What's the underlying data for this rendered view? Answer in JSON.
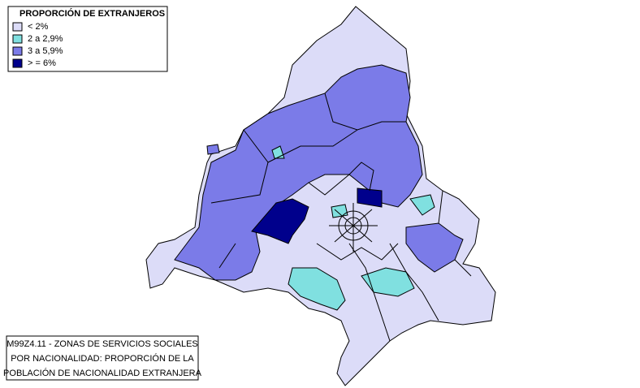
{
  "legend": {
    "title": "PROPORCIÓN DE EXTRANJEROS",
    "items": [
      {
        "label": "< 2%",
        "color": "#dcdcf8"
      },
      {
        "label": "2 a 2,9%",
        "color": "#80e0e0"
      },
      {
        "label": "3 a 5,9%",
        "color": "#7b7be8"
      },
      {
        "label": ">  = 6%",
        "color": "#00008c"
      }
    ]
  },
  "caption": {
    "lines": [
      "M99Z4.11 - ZONAS DE SERVICIOS SOCIALES",
      "POR NACIONALIDAD: PROPORCIÓN DE LA",
      "POBLACIÓN DE NACIONALIDAD EXTRANJERA"
    ]
  }
}
